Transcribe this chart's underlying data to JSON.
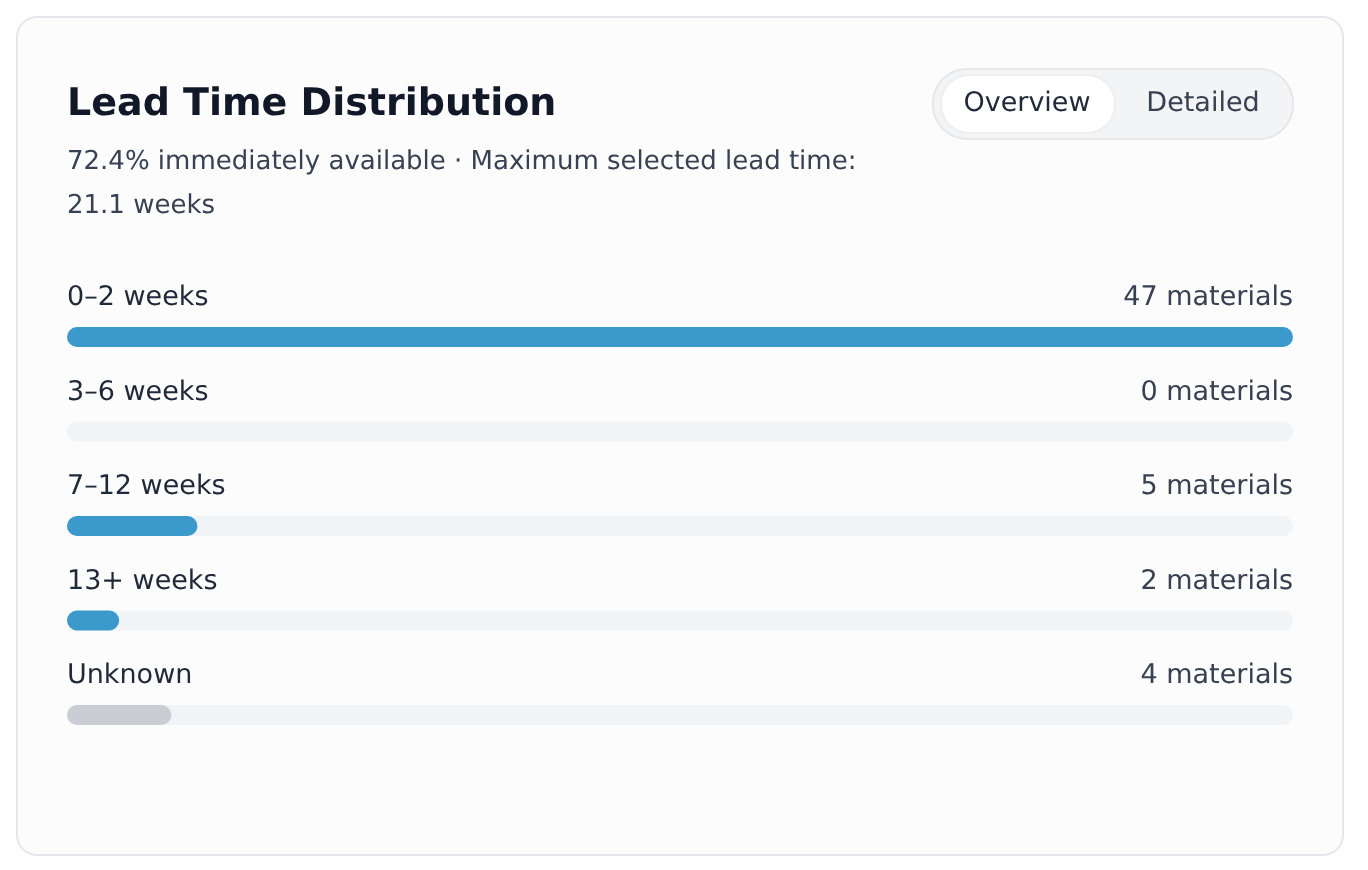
{
  "chart_data": {
    "type": "bar",
    "orientation": "horizontal",
    "title": "Lead Time Distribution",
    "subtitle": "72.4% immediately available · Maximum selected lead time: 21.1 weeks",
    "categories": [
      "0–2 weeks",
      "3–6 weeks",
      "7–12 weeks",
      "13+ weeks",
      "Unknown"
    ],
    "values": [
      47,
      0,
      5,
      2,
      4
    ],
    "colors": [
      "#3b9acb",
      "#3b9acb",
      "#3b9acb",
      "#3b9acb",
      "#cacdd3"
    ],
    "value_labels": [
      "47 materials",
      "0 materials",
      "5 materials",
      "2 materials",
      "4 materials"
    ],
    "xlim": [
      0,
      47
    ],
    "tick_labels": false,
    "annotations": [
      "Overview",
      "Detailed"
    ]
  }
}
